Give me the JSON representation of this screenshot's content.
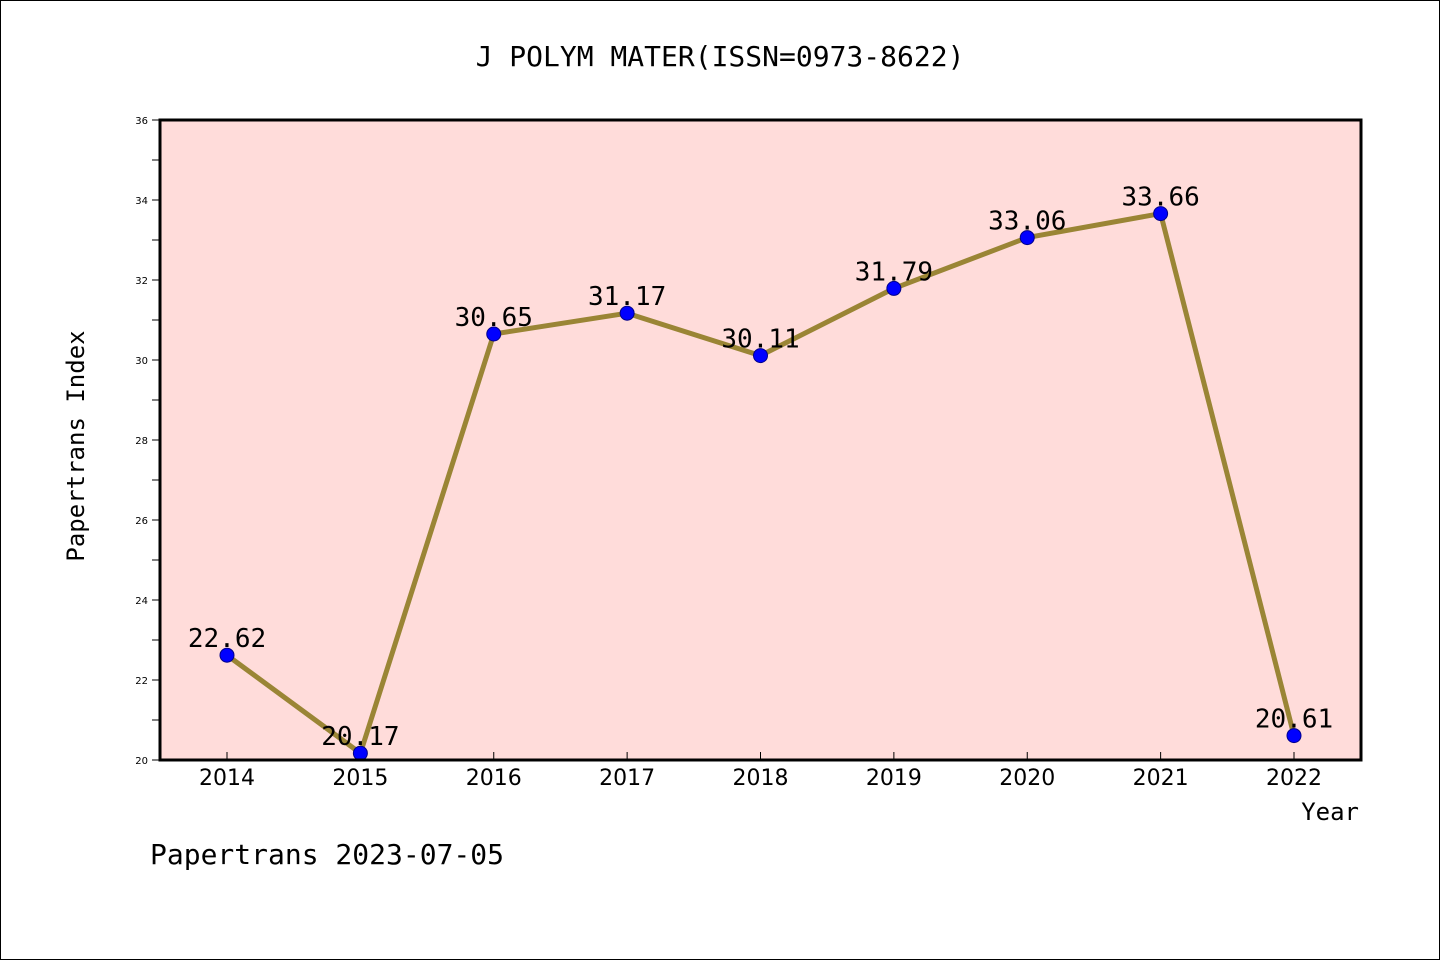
{
  "chart_data": {
    "type": "line",
    "title": "J POLYM MATER(ISSN=0973-8622)",
    "xlabel": "Year",
    "ylabel": "Papertrans Index",
    "categories": [
      "2014",
      "2015",
      "2016",
      "2017",
      "2018",
      "2019",
      "2020",
      "2021",
      "2022"
    ],
    "values": [
      22.62,
      20.17,
      30.65,
      31.17,
      30.11,
      31.79,
      33.06,
      33.66,
      20.61
    ],
    "data_labels": [
      "22.62",
      "20.17",
      "30.65",
      "31.17",
      "30.11",
      "31.79",
      "33.06",
      "33.66",
      "20.61"
    ],
    "ylim": [
      20,
      36
    ],
    "yticks": [
      20,
      22,
      24,
      26,
      28,
      30,
      32,
      34,
      36
    ],
    "ytick_labels": [
      "20",
      "22",
      "24",
      "26",
      "28",
      "30",
      "32",
      "34",
      "36"
    ],
    "grid": false,
    "legend": "none",
    "colors": {
      "plot_background": "#FFDCDA",
      "line": "#9A8535",
      "marker": "#0000FF",
      "marker_edge": "#00008B"
    }
  },
  "footer": {
    "text": "Papertrans 2023-07-05"
  }
}
